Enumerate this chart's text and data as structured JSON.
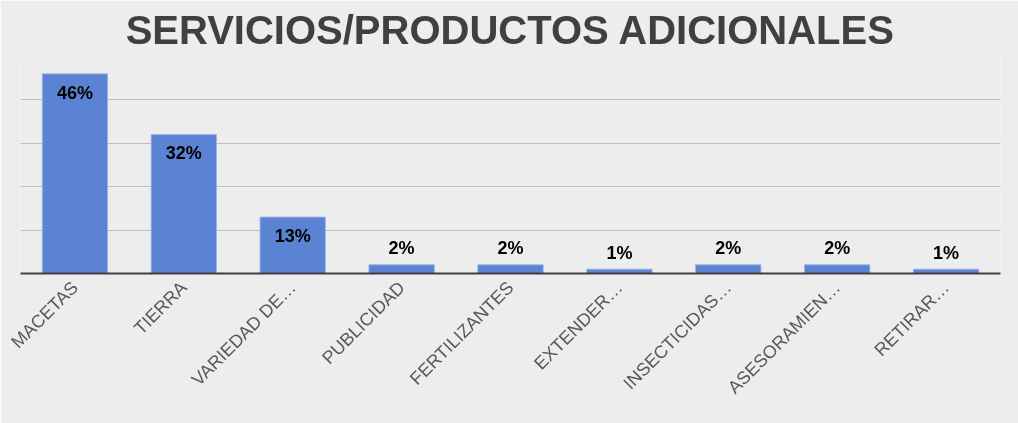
{
  "chart_data": {
    "type": "bar",
    "title": "SERVICIOS/PRODUCTOS ADICIONALES",
    "categories": [
      "MACETAS",
      "TIERRA",
      "VARIEDAD DE…",
      "PUBLICIDAD",
      "FERTILIZANTES",
      "EXTENDER…",
      "INSECTICIDAS…",
      "ASESORAMIEN…",
      "RETIRAR…"
    ],
    "values": [
      46,
      32,
      13,
      2,
      2,
      1,
      2,
      2,
      1
    ],
    "value_labels": [
      "46%",
      "32%",
      "13%",
      "2%",
      "2%",
      "1%",
      "2%",
      "2%",
      "1%"
    ],
    "color": "#5b83d3",
    "ylim": [
      0,
      50
    ],
    "yticks": [
      {
        "value": 0,
        "label": null
      },
      {
        "value": 10,
        "label": null
      },
      {
        "value": 20,
        "label": null
      },
      {
        "value": 30,
        "label": null
      },
      {
        "value": 40,
        "label": null
      },
      {
        "value": 50,
        "label": null
      }
    ],
    "grid": "y",
    "tick_labels": "x"
  }
}
